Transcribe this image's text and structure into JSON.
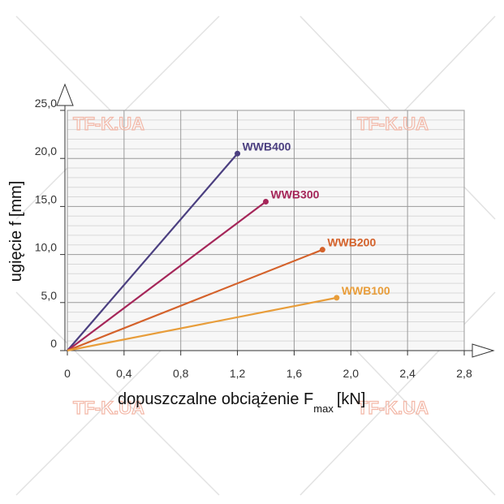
{
  "chart_data": {
    "type": "line",
    "ylabel": "ugięcie f [mm]",
    "xlabel": "dopuszczalne obciążenie F",
    "xlabel_sub": "max",
    "xlabel_unit": "[kN]",
    "watermark": "TF-K.UA",
    "xlim": [
      0,
      2.8
    ],
    "xticks": [
      0,
      {
        "value": 0.4,
        "label": "0,4"
      },
      {
        "value": 0.8,
        "label": "0,8"
      },
      {
        "value": 1.2,
        "label": "1,2"
      },
      {
        "value": 1.6,
        "label": "1,6"
      },
      {
        "value": 2.0,
        "label": "2,0"
      },
      {
        "value": 2.4,
        "label": "2,4"
      },
      {
        "value": 2.8,
        "label": "2,8"
      }
    ],
    "ylim": [
      0,
      25
    ],
    "yticks": [
      0,
      {
        "value": 5,
        "label": "5,0"
      },
      {
        "value": 10,
        "label": "10,0"
      },
      {
        "value": 15,
        "label": "15,0"
      },
      {
        "value": 20,
        "label": "20,0"
      },
      {
        "value": 25,
        "label": "25,0"
      }
    ],
    "grid": true,
    "series": [
      {
        "name": "WWB400",
        "color": "#4b3f80",
        "x": [
          0,
          1.2
        ],
        "values": [
          0,
          20.5
        ]
      },
      {
        "name": "WWB300",
        "color": "#a52659",
        "x": [
          0,
          1.4
        ],
        "values": [
          0,
          15.5
        ]
      },
      {
        "name": "WWB200",
        "color": "#d4622b",
        "x": [
          0,
          1.8
        ],
        "values": [
          0,
          10.5
        ]
      },
      {
        "name": "WWB100",
        "color": "#e89d3a",
        "x": [
          0,
          1.9
        ],
        "values": [
          0,
          5.5
        ]
      }
    ]
  }
}
